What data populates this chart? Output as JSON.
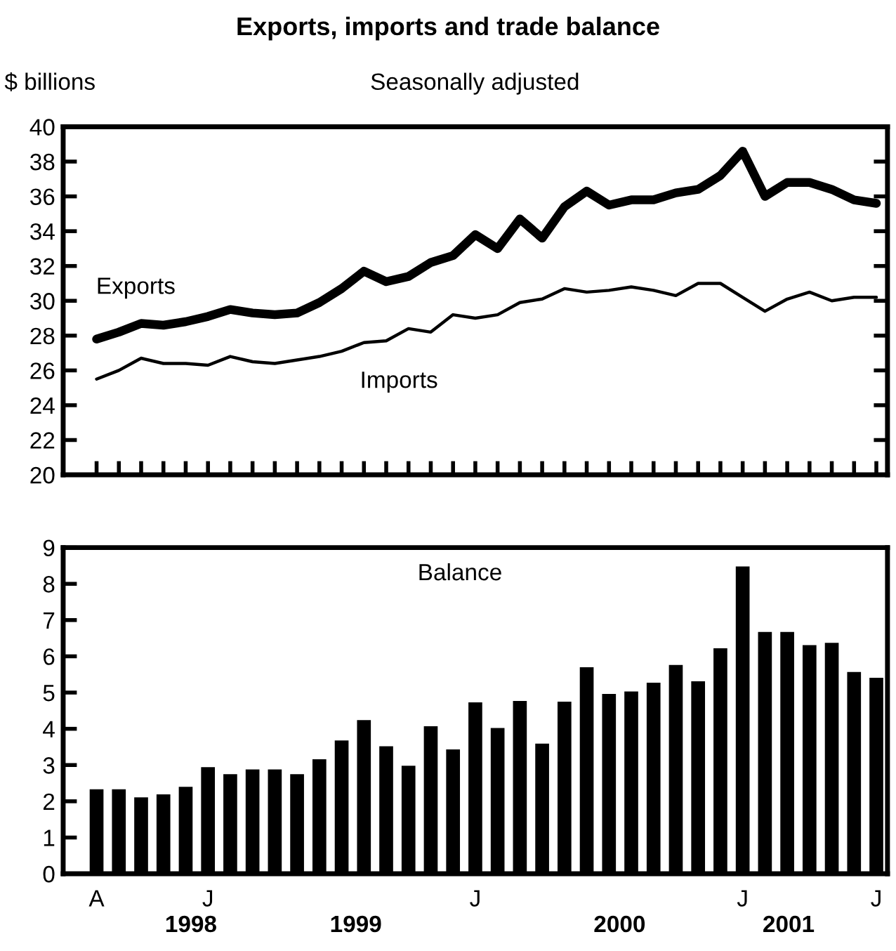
{
  "chart_data": [
    {
      "type": "line",
      "title": "Exports, imports and trade balance",
      "subtitle": "Seasonally adjusted",
      "ylabel": "$ billions",
      "categories": [
        null,
        null,
        null,
        null,
        null,
        null,
        null,
        null,
        null,
        null,
        null,
        null,
        null,
        null,
        null,
        null,
        null,
        null,
        null,
        null,
        null,
        null,
        null,
        null,
        null,
        null,
        null,
        null,
        null,
        null,
        null,
        null,
        null,
        null,
        null,
        null
      ],
      "series": [
        {
          "name": "Exports",
          "color": "#000000",
          "values": [
            27.8,
            28.2,
            28.7,
            28.6,
            28.8,
            29.1,
            29.5,
            29.3,
            29.2,
            29.3,
            29.9,
            30.7,
            31.7,
            31.1,
            31.4,
            32.2,
            32.6,
            33.8,
            33.0,
            34.7,
            33.6,
            35.4,
            36.3,
            35.5,
            35.8,
            35.8,
            36.2,
            36.4,
            37.2,
            38.6,
            36.0,
            36.8,
            36.8,
            36.4,
            35.8,
            35.6
          ]
        },
        {
          "name": "Imports",
          "color": "#000000",
          "values": [
            25.5,
            26.0,
            26.7,
            26.4,
            26.4,
            26.3,
            26.8,
            26.5,
            26.4,
            26.6,
            26.8,
            27.1,
            27.6,
            27.7,
            28.4,
            28.2,
            29.2,
            29.0,
            29.2,
            29.9,
            30.1,
            30.7,
            30.5,
            30.6,
            30.8,
            30.6,
            30.3,
            31.0,
            31.0,
            30.2,
            29.4,
            30.1,
            30.5,
            30.0,
            30.2,
            30.2
          ]
        }
      ],
      "ylim": [
        20,
        40
      ],
      "yticks": [
        20,
        22,
        24,
        26,
        28,
        30,
        32,
        34,
        36,
        38,
        40
      ],
      "grid": false,
      "legend": false
    },
    {
      "type": "bar",
      "categories": [
        "A",
        null,
        null,
        null,
        null,
        "J",
        null,
        null,
        null,
        null,
        null,
        null,
        null,
        null,
        null,
        null,
        null,
        "J",
        null,
        null,
        null,
        null,
        null,
        null,
        null,
        null,
        null,
        null,
        null,
        "J",
        null,
        null,
        null,
        null,
        null,
        "J"
      ],
      "series": [
        {
          "name": "Balance",
          "color": "#000000",
          "values": [
            2.33,
            2.33,
            2.11,
            2.19,
            2.4,
            2.94,
            2.75,
            2.88,
            2.88,
            2.75,
            3.16,
            3.68,
            4.24,
            3.52,
            2.98,
            4.07,
            3.43,
            4.73,
            4.02,
            4.77,
            3.59,
            4.75,
            5.7,
            4.96,
            5.03,
            5.27,
            5.76,
            5.31,
            6.22,
            8.48,
            6.67,
            6.67,
            6.31,
            6.37,
            5.57,
            5.41
          ]
        }
      ],
      "ylim": [
        0,
        9
      ],
      "yticks": [
        0,
        1,
        2,
        3,
        4,
        5,
        6,
        7,
        8,
        9
      ],
      "grid": false,
      "legend": false,
      "annotations": [
        "1998",
        "1999",
        "2000",
        "2001"
      ]
    }
  ]
}
